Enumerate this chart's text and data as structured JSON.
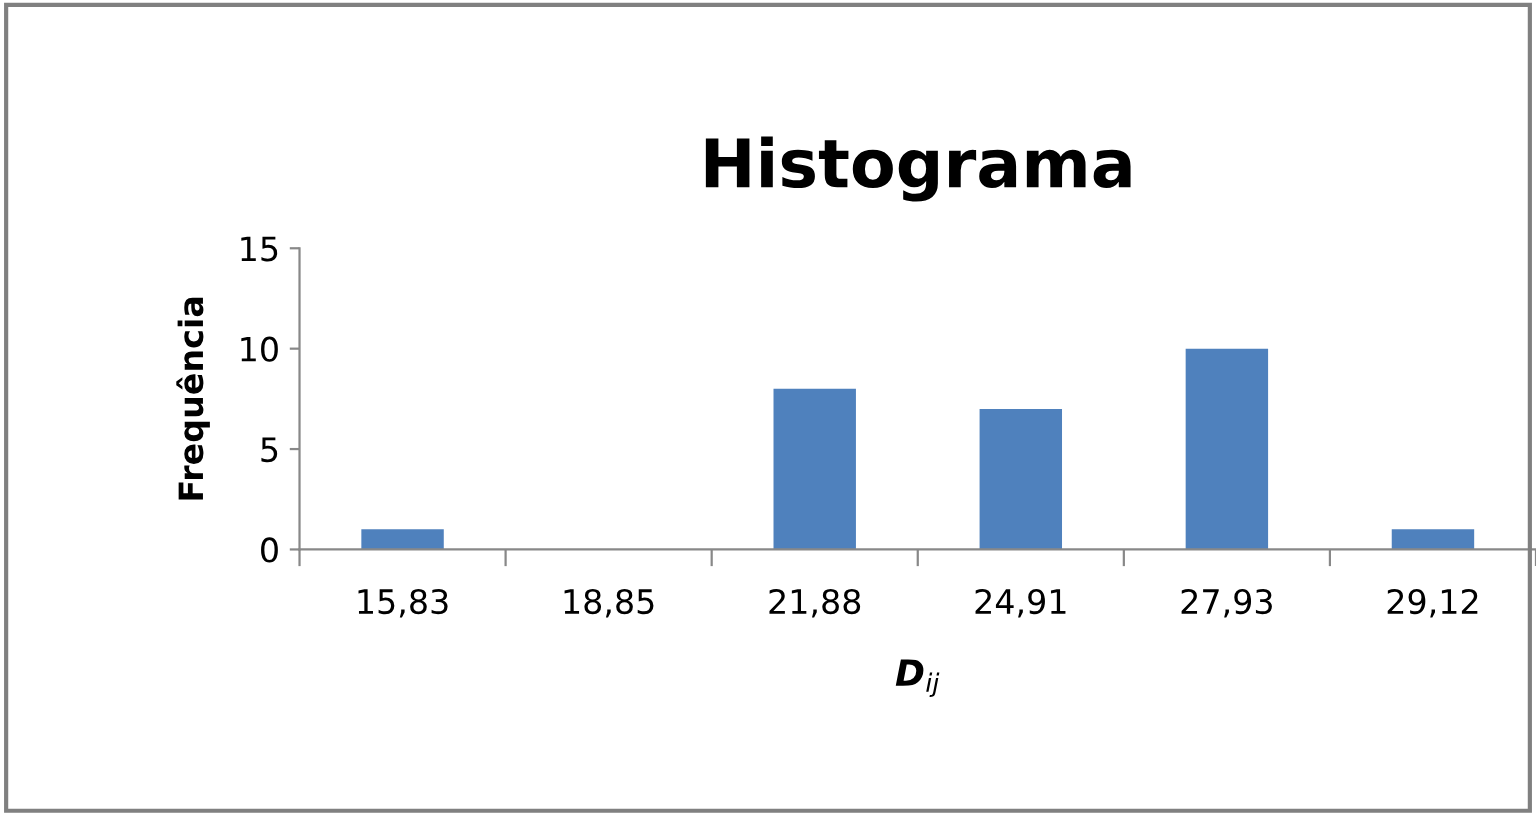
{
  "chart_data": {
    "type": "bar",
    "title": "Histograma",
    "xlabel": "D$_{ij}$",
    "ylabel": "Frequência",
    "categories": [
      "15,83",
      "18,85",
      "21,88",
      "24,91",
      "27,93",
      "29,12"
    ],
    "values": [
      1,
      0,
      8,
      7,
      10,
      1
    ],
    "color": "#4f81bd",
    "ylim": [
      0,
      15
    ],
    "yticks": [
      0,
      5,
      10,
      15
    ],
    "grid": false,
    "legend": false
  }
}
